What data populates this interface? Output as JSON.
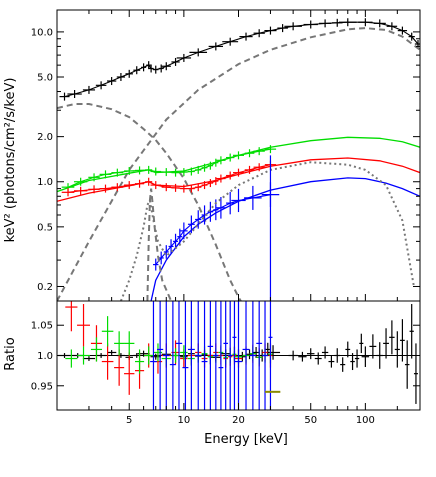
{
  "chart_data": [
    {
      "type": "line",
      "panel": "spectrum",
      "xscale": "log",
      "yscale": "log",
      "xlim": [
        2.0,
        200
      ],
      "ylim": [
        0.16,
        14
      ],
      "ylabel": "keV² (photons/cm²/s/keV)",
      "y_ticks": [
        {
          "value": 0.2,
          "label": "0.2"
        },
        {
          "value": 0.5,
          "label": "0.5"
        },
        {
          "value": 1.0,
          "label": "1.0"
        },
        {
          "value": 2.0,
          "label": "2.0"
        },
        {
          "value": 5.0,
          "label": "5.0"
        },
        {
          "value": 10.0,
          "label": "10.0"
        }
      ],
      "series": [
        {
          "role": "black-data",
          "color": "#000000",
          "style": "crosses",
          "x": [
            2.2,
            2.5,
            3.0,
            3.5,
            4.0,
            4.5,
            5.0,
            5.5,
            6.0,
            6.4,
            6.6,
            7.0,
            7.5,
            8,
            9,
            10,
            12,
            15,
            18,
            22,
            26,
            30,
            35,
            40,
            50,
            60,
            70,
            80,
            100,
            120,
            140,
            160,
            180,
            195
          ],
          "y": [
            3.7,
            3.85,
            4.1,
            4.4,
            4.7,
            5.0,
            5.25,
            5.55,
            5.8,
            6.0,
            5.7,
            5.6,
            5.7,
            5.9,
            6.3,
            6.7,
            7.3,
            8.0,
            8.6,
            9.3,
            9.8,
            10.2,
            10.6,
            10.9,
            11.2,
            11.4,
            11.5,
            11.6,
            11.6,
            11.4,
            10.9,
            10.2,
            9.3,
            8.3
          ]
        },
        {
          "role": "black-model-component",
          "color": "#777777",
          "style": "dashed",
          "x": [
            2.0,
            3,
            5,
            8,
            12,
            20,
            30,
            50,
            80,
            100,
            130,
            160,
            200
          ],
          "y": [
            0.16,
            0.4,
            1.2,
            2.6,
            4.1,
            6.1,
            7.6,
            9.2,
            10.4,
            10.6,
            10.3,
            9.3,
            7.6
          ]
        },
        {
          "role": "black-model-component",
          "color": "#777777",
          "style": "dashed",
          "x": [
            2.0,
            2.5,
            3.0,
            4.0,
            5.0,
            6.0,
            7.0,
            8.0,
            10,
            12,
            15,
            18,
            20,
            22
          ],
          "y": [
            3.1,
            3.3,
            3.3,
            3.05,
            2.7,
            2.25,
            1.9,
            1.55,
            1.05,
            0.7,
            0.38,
            0.22,
            0.17,
            0.14
          ]
        },
        {
          "role": "green-data",
          "color": "#00dd00",
          "style": "crosses",
          "x": [
            2.3,
            2.7,
            3.2,
            3.7,
            4.3,
            5.0,
            5.7,
            6.4,
            7.0,
            8.0,
            9.0,
            10,
            11,
            12,
            13,
            14,
            15,
            16,
            18,
            20,
            23,
            26,
            30
          ],
          "y": [
            0.92,
            1.0,
            1.07,
            1.12,
            1.15,
            1.18,
            1.19,
            1.2,
            1.17,
            1.16,
            1.15,
            1.16,
            1.17,
            1.2,
            1.24,
            1.28,
            1.34,
            1.39,
            1.45,
            1.5,
            1.55,
            1.6,
            1.65
          ]
        },
        {
          "role": "green-model",
          "color": "#00dd00",
          "style": "solid",
          "x": [
            2.0,
            3,
            5,
            6.4,
            7,
            10,
            15,
            20,
            30,
            50,
            80,
            120,
            160,
            200
          ],
          "y": [
            0.86,
            1.02,
            1.14,
            1.2,
            1.15,
            1.18,
            1.35,
            1.5,
            1.7,
            1.88,
            1.98,
            1.95,
            1.85,
            1.7
          ]
        },
        {
          "role": "red-data",
          "color": "#ff0000",
          "style": "crosses",
          "x": [
            2.3,
            2.7,
            3.2,
            3.7,
            4.3,
            5.0,
            5.7,
            6.4,
            7.0,
            8.0,
            9.0,
            10,
            11,
            12,
            13,
            14,
            15,
            16,
            18,
            20,
            23,
            26,
            30
          ],
          "y": [
            0.85,
            0.87,
            0.89,
            0.9,
            0.92,
            0.95,
            0.97,
            1.0,
            0.95,
            0.92,
            0.91,
            0.9,
            0.9,
            0.92,
            0.95,
            0.98,
            1.01,
            1.05,
            1.1,
            1.15,
            1.2,
            1.25,
            1.3
          ]
        },
        {
          "role": "red-model",
          "color": "#ff0000",
          "style": "solid",
          "x": [
            2.0,
            3,
            5,
            6.4,
            7,
            10,
            15,
            20,
            30,
            50,
            80,
            120,
            160,
            200
          ],
          "y": [
            0.74,
            0.84,
            0.94,
            1.0,
            0.95,
            0.93,
            1.02,
            1.12,
            1.27,
            1.4,
            1.44,
            1.38,
            1.27,
            1.15
          ]
        },
        {
          "role": "blue-data",
          "color": "#0000ff",
          "style": "crosses",
          "x": [
            7.0,
            7.5,
            8.0,
            8.5,
            9.0,
            9.5,
            10,
            11,
            12,
            13,
            14,
            15,
            16,
            18,
            20,
            24,
            30
          ],
          "y": [
            0.28,
            0.31,
            0.34,
            0.37,
            0.4,
            0.43,
            0.47,
            0.52,
            0.56,
            0.6,
            0.63,
            0.65,
            0.67,
            0.72,
            0.75,
            0.78,
            0.82
          ]
        },
        {
          "role": "blue-model",
          "color": "#0000ff",
          "style": "solid",
          "x": [
            6.6,
            7,
            8,
            10,
            12,
            15,
            20,
            30,
            50,
            80,
            100,
            130,
            160,
            200
          ],
          "y": [
            0.16,
            0.22,
            0.3,
            0.43,
            0.52,
            0.62,
            0.74,
            0.88,
            1.0,
            1.06,
            1.05,
            0.98,
            0.9,
            0.8
          ]
        },
        {
          "role": "blue-model-component",
          "color": "#777777",
          "style": "dotted",
          "x": [
            4.5,
            5,
            5.5,
            6,
            6.3,
            6.5,
            6.8,
            7.2,
            8,
            10,
            15,
            20,
            30,
            50,
            80,
            100,
            130,
            160,
            185
          ],
          "y": [
            0.16,
            0.22,
            0.32,
            0.5,
            0.7,
            0.75,
            0.55,
            0.4,
            0.32,
            0.4,
            0.72,
            0.95,
            1.2,
            1.35,
            1.3,
            1.2,
            0.95,
            0.55,
            0.2
          ]
        },
        {
          "role": "black-model-component",
          "color": "#777777",
          "style": "dashed",
          "x": [
            6.3,
            6.4,
            6.5,
            6.6,
            6.7,
            6.9,
            7.2,
            7.6,
            8.5
          ],
          "y": [
            0.16,
            0.4,
            0.75,
            0.9,
            0.75,
            0.5,
            0.32,
            0.22,
            0.16
          ]
        }
      ]
    },
    {
      "type": "scatter",
      "panel": "ratio",
      "xscale": "log",
      "xlim": [
        2.0,
        200
      ],
      "ylim": [
        0.91,
        1.09
      ],
      "xlabel": "Energy [keV]",
      "ylabel": "Ratio",
      "x_ticks": [
        {
          "value": 5,
          "label": "5"
        },
        {
          "value": 10,
          "label": "10"
        },
        {
          "value": 20,
          "label": "20"
        },
        {
          "value": 50,
          "label": "50"
        },
        {
          "value": 100,
          "label": "100"
        }
      ],
      "y_ticks": [
        {
          "value": 0.95,
          "label": "0.95"
        },
        {
          "value": 1.0,
          "label": "1.0"
        },
        {
          "value": 1.05,
          "label": "1.05"
        }
      ],
      "series": [
        {
          "role": "black-ratio",
          "color": "#000000",
          "x": [
            2.2,
            2.6,
            3.0,
            3.5,
            4.0,
            4.5,
            5.0,
            5.5,
            6.0,
            7,
            8,
            9,
            10,
            11,
            12,
            13,
            14,
            15,
            17,
            19,
            21,
            23,
            25,
            27,
            29,
            31,
            40,
            45,
            50,
            55,
            60,
            65,
            70,
            75,
            80,
            85,
            90,
            95,
            100,
            110,
            120,
            130,
            140,
            150,
            160,
            170,
            180,
            190
          ],
          "y": [
            1.0,
            1.0,
            0.995,
            1.0,
            1.005,
            1.0,
            0.997,
            1.0,
            1.003,
            0.998,
            1.002,
            1.0,
            0.998,
            1.003,
            0.999,
            1.002,
            1.0,
            0.997,
            1.003,
            1.0,
            0.998,
            1.002,
            1.005,
            1.0,
            1.01,
            1.005,
            1.0,
            0.998,
            1.003,
            0.995,
            1.005,
            0.99,
            1.0,
            0.985,
            1.01,
            0.99,
            0.995,
            1.02,
            0.998,
            1.015,
            1.0,
            1.02,
            1.03,
            1.01,
            1.025,
            0.985,
            1.04,
            0.97
          ],
          "yerr": [
            0.004,
            0.004,
            0.004,
            0.004,
            0.004,
            0.004,
            0.004,
            0.004,
            0.005,
            0.005,
            0.005,
            0.005,
            0.005,
            0.005,
            0.005,
            0.006,
            0.006,
            0.006,
            0.007,
            0.007,
            0.008,
            0.008,
            0.009,
            0.01,
            0.011,
            0.012,
            0.008,
            0.008,
            0.009,
            0.01,
            0.01,
            0.01,
            0.012,
            0.012,
            0.013,
            0.014,
            0.015,
            0.016,
            0.017,
            0.02,
            0.022,
            0.025,
            0.028,
            0.03,
            0.035,
            0.04,
            0.045,
            0.05
          ]
        },
        {
          "role": "red-ratio",
          "color": "#ff0000",
          "x": [
            2.4,
            2.8,
            3.3,
            3.8,
            4.4,
            5.0,
            5.7,
            6.4,
            7.2,
            8.0,
            9.0,
            10,
            11,
            12,
            13,
            14,
            15,
            16,
            17,
            18,
            19,
            20,
            22,
            24,
            26,
            28,
            30
          ],
          "y": [
            1.08,
            1.05,
            1.02,
            0.99,
            0.98,
            0.97,
            0.975,
            1.0,
            0.99,
            1.0,
            1.005,
            0.995,
            1.0,
            1.005,
            0.995,
            1.0,
            1.005,
            1.0,
            0.995,
            0.998,
            1.0,
            0.995,
            1.0,
            1.003,
            0.997,
            1.005,
            1.0
          ],
          "yerr": [
            0.04,
            0.035,
            0.03,
            0.03,
            0.03,
            0.035,
            0.03,
            0.02,
            0.02,
            0.02,
            0.02,
            0.015,
            0.015,
            0.015,
            0.015,
            0.015,
            0.015,
            0.015,
            0.015,
            0.015,
            0.015,
            0.015,
            0.015,
            0.015,
            0.015,
            0.015,
            0.02
          ]
        },
        {
          "role": "green-ratio",
          "color": "#00dd00",
          "x": [
            2.4,
            2.8,
            3.3,
            3.8,
            4.4,
            5.0,
            5.7,
            6.4,
            7.2,
            8.0,
            9.0,
            10,
            11,
            12,
            13,
            14,
            15,
            16,
            17,
            18,
            19,
            20,
            22,
            24,
            26,
            28,
            30
          ],
          "y": [
            0.995,
            1.0,
            1.01,
            1.04,
            1.02,
            1.02,
            0.99,
            1.0,
            1.005,
            0.995,
            1.0,
            1.005,
            0.995,
            1.0,
            1.003,
            0.998,
            1.0,
            1.005,
            0.997,
            1.0,
            1.002,
            0.998,
            1.0,
            1.003,
            0.997,
            1.0,
            1.002
          ],
          "yerr": [
            0.015,
            0.015,
            0.02,
            0.025,
            0.02,
            0.02,
            0.02,
            0.015,
            0.015,
            0.012,
            0.012,
            0.012,
            0.012,
            0.012,
            0.012,
            0.012,
            0.012,
            0.012,
            0.012,
            0.012,
            0.012,
            0.012,
            0.012,
            0.012,
            0.012,
            0.012,
            0.015
          ]
        },
        {
          "role": "blue-ratio",
          "color": "#0000ff",
          "x": [
            6.8,
            7.4,
            8.0,
            8.7,
            9.4,
            10.2,
            11,
            12,
            13,
            14,
            15,
            16,
            17,
            18,
            19,
            20,
            22,
            24,
            26,
            28,
            30
          ],
          "y": [
            0.99,
            1.01,
            1.0,
            0.985,
            1.02,
            0.98,
            1.01,
            1.0,
            0.99,
            1.015,
            1.0,
            0.98,
            1.02,
            1.0,
            1.03,
            0.99,
            1.01,
            1.0,
            1.02,
            1.0,
            1.03
          ],
          "yerr": [
            0.12,
            0.12,
            0.12,
            0.12,
            0.12,
            0.12,
            0.12,
            0.12,
            0.12,
            0.12,
            0.12,
            0.12,
            0.12,
            0.12,
            0.12,
            0.12,
            0.12,
            0.12,
            0.12,
            0.12,
            0.12
          ]
        }
      ]
    }
  ]
}
